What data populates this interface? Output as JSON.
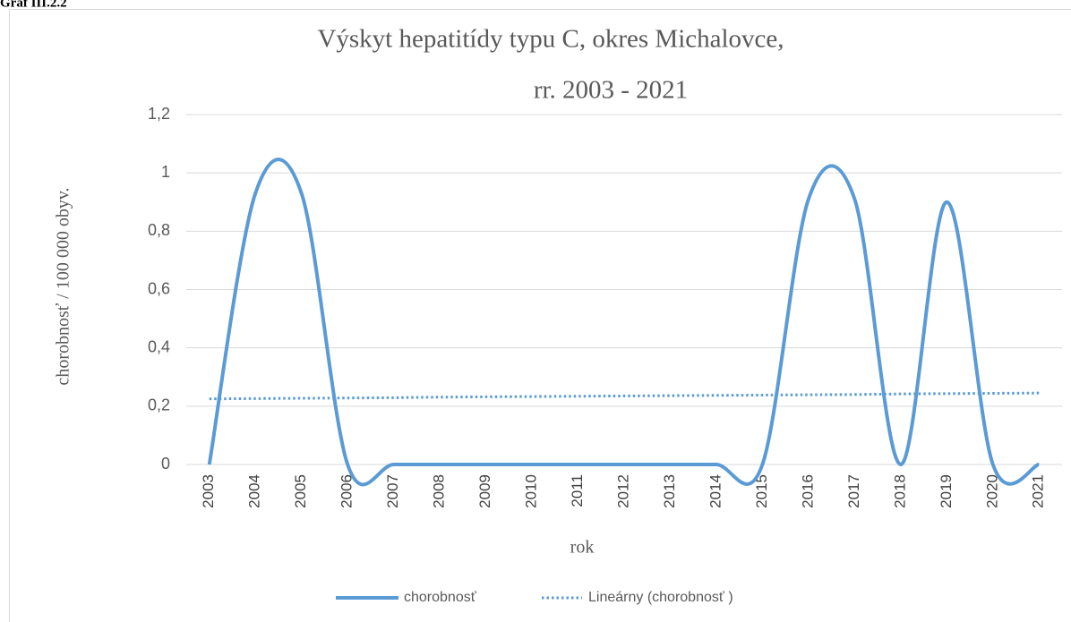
{
  "label": "Graf III.2.2",
  "chart_data": {
    "type": "line",
    "title": [
      "Výskyt  hepatitídy typu C, okres Michalovce,",
      "rr. 2003  - 2021"
    ],
    "xlabel": "rok",
    "ylabel": "chorobnosť / 100 000 obyv.",
    "categories": [
      "2003",
      "2004",
      "2005",
      "2006",
      "2007",
      "2008",
      "2009",
      "2010",
      "2011",
      "2012",
      "2013",
      "2014",
      "2015",
      "2016",
      "2017",
      "2018",
      "2019",
      "2020",
      "2021"
    ],
    "series": [
      {
        "name": "chorobnosť",
        "color": "#5b9bd5",
        "style": "solid",
        "smooth": true,
        "values": [
          0,
          0.93,
          0.93,
          0,
          0,
          0,
          0,
          0,
          0,
          0,
          0,
          0,
          0,
          0.91,
          0.91,
          0,
          0.9,
          0,
          0
        ]
      },
      {
        "name": "Lineárny (chorobnosť )",
        "color": "#5b9bd5",
        "style": "dotted",
        "smooth": false,
        "values": [
          0.225,
          0.226,
          0.227,
          0.228,
          0.229,
          0.231,
          0.232,
          0.233,
          0.234,
          0.235,
          0.236,
          0.237,
          0.238,
          0.239,
          0.24,
          0.242,
          0.243,
          0.244,
          0.245
        ]
      }
    ],
    "ylim": [
      0,
      1.2
    ],
    "yticks": [
      0,
      {
        "value": 0.2,
        "label": "0,2"
      },
      {
        "value": 0.4,
        "label": "0,4"
      },
      {
        "value": 0.6,
        "label": "0,6"
      },
      {
        "value": 0.8,
        "label": "0,8"
      },
      1,
      {
        "value": 1.2,
        "label": "1,2"
      }
    ],
    "grid": true,
    "legend": "bottom"
  }
}
